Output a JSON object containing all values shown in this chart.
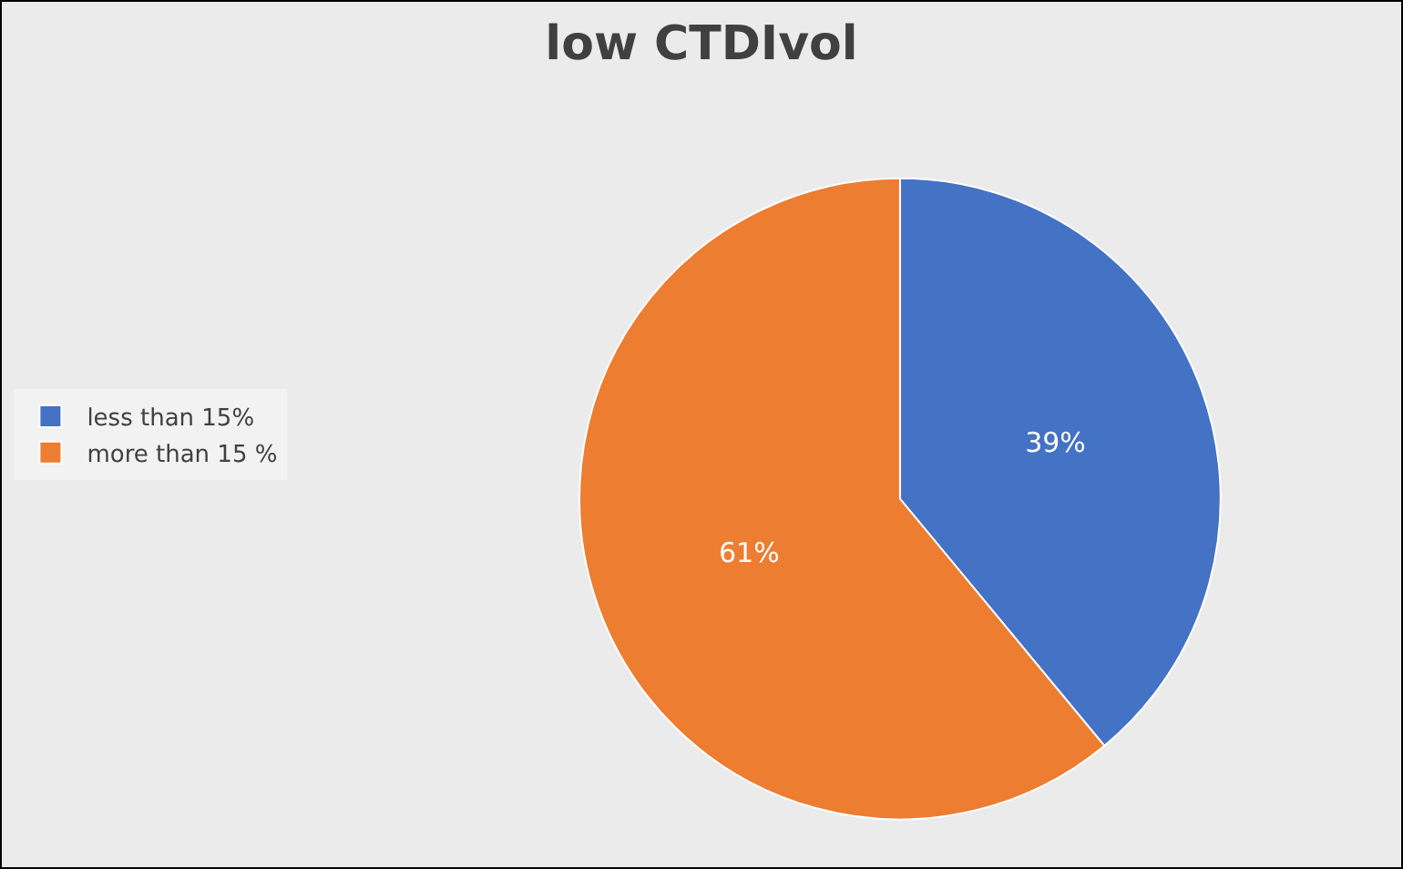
{
  "chart_data": {
    "type": "pie",
    "title": "low CTDIvol",
    "categories": [
      "less than 15%",
      "more than 15 %"
    ],
    "values": [
      39,
      61
    ],
    "colors": [
      "#4472c4",
      "#ed7d31"
    ],
    "value_labels": [
      "39%",
      "61%"
    ],
    "legend": "left"
  }
}
